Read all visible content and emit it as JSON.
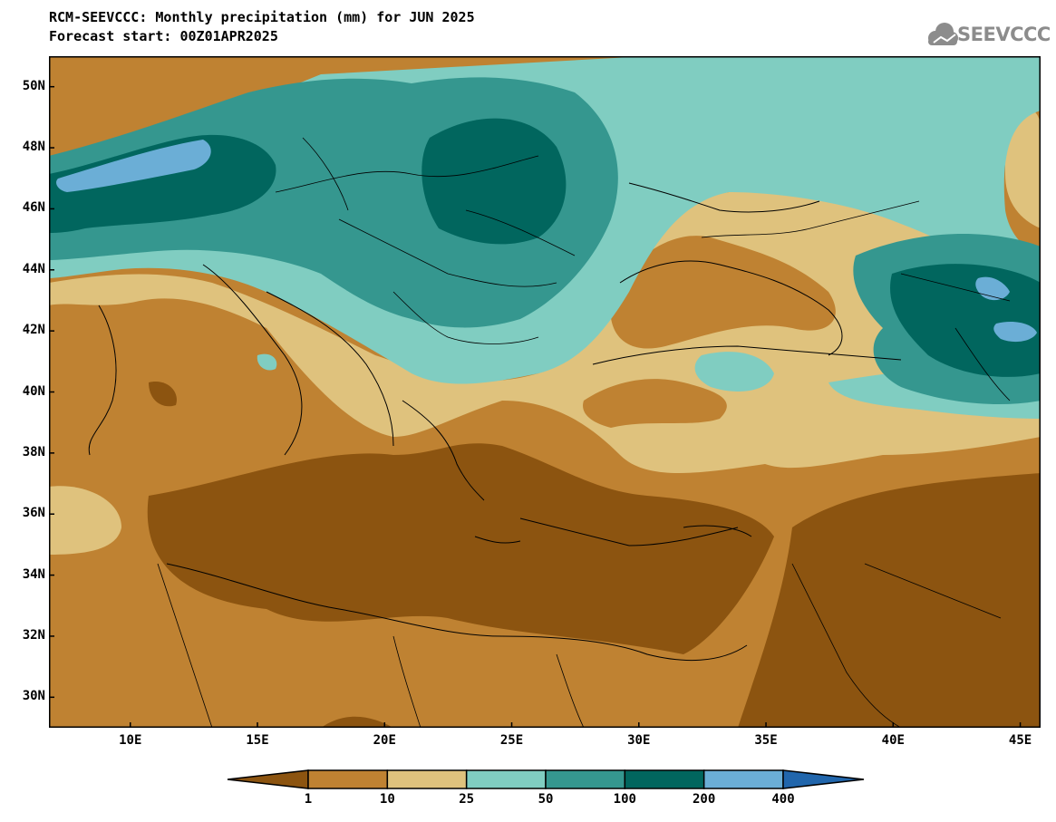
{
  "header": {
    "title_line1": "RCM-SEEVCCC: Monthly precipitation (mm) for JUN 2025",
    "title_line2": "Forecast start: 00Z01APR2025",
    "logo_text": "SEEVCCC",
    "logo_icon": "cloud-icon",
    "logo_color": "#8c8c8c"
  },
  "map": {
    "lon_range": [
      6.8,
      45.8
    ],
    "lat_range": [
      29.0,
      51.0
    ],
    "lat_ticks": [
      "30N",
      "32N",
      "34N",
      "36N",
      "38N",
      "40N",
      "42N",
      "44N",
      "46N",
      "48N",
      "50N"
    ],
    "lat_tick_values": [
      30,
      32,
      34,
      36,
      38,
      40,
      42,
      44,
      46,
      48,
      50
    ],
    "lon_ticks": [
      "10E",
      "15E",
      "20E",
      "25E",
      "30E",
      "35E",
      "40E",
      "45E"
    ],
    "lon_tick_values": [
      10,
      15,
      20,
      25,
      30,
      35,
      40,
      45
    ]
  },
  "colorbar": {
    "levels": [
      "1",
      "10",
      "25",
      "50",
      "100",
      "200",
      "400"
    ],
    "colors": [
      "#8c5410",
      "#bf8232",
      "#dfc27d",
      "#80cdc1",
      "#35978f",
      "#01665e",
      "#6baed6",
      "#2166ac"
    ]
  }
}
